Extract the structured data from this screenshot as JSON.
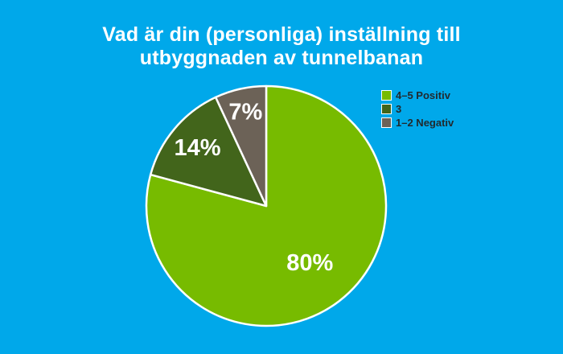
{
  "background_color": "#00A8EA",
  "title_color": "#FFFFFF",
  "legend_text_color": "#222A2E",
  "chart_data": {
    "type": "pie",
    "title": "Vad är din (personliga) inställning till utbyggnaden av tunnelbanan",
    "title_lines": [
      "Vad är din (personliga) inställning till",
      "utbyggnaden av tunnelbanan"
    ],
    "start_angle_deg": 0,
    "direction": "clockwise",
    "slice_border_color": "#FFFFFF",
    "label_color": "#FFFFFF",
    "slices": [
      {
        "name": "4–5 Positiv",
        "value": 80,
        "label": "80%",
        "color": "#77BB00"
      },
      {
        "name": "3",
        "value": 14,
        "label": "14%",
        "color": "#42651B"
      },
      {
        "name": "1–2 Negativ",
        "value": 7,
        "label": "7%",
        "color": "#6C6257"
      }
    ],
    "legend": {
      "position": "top-right",
      "entries": [
        {
          "label": "4–5 Positiv",
          "color": "#77BB00"
        },
        {
          "label": "3",
          "color": "#42651B"
        },
        {
          "label": "1–2 Negativ",
          "color": "#6C6257"
        }
      ]
    }
  }
}
